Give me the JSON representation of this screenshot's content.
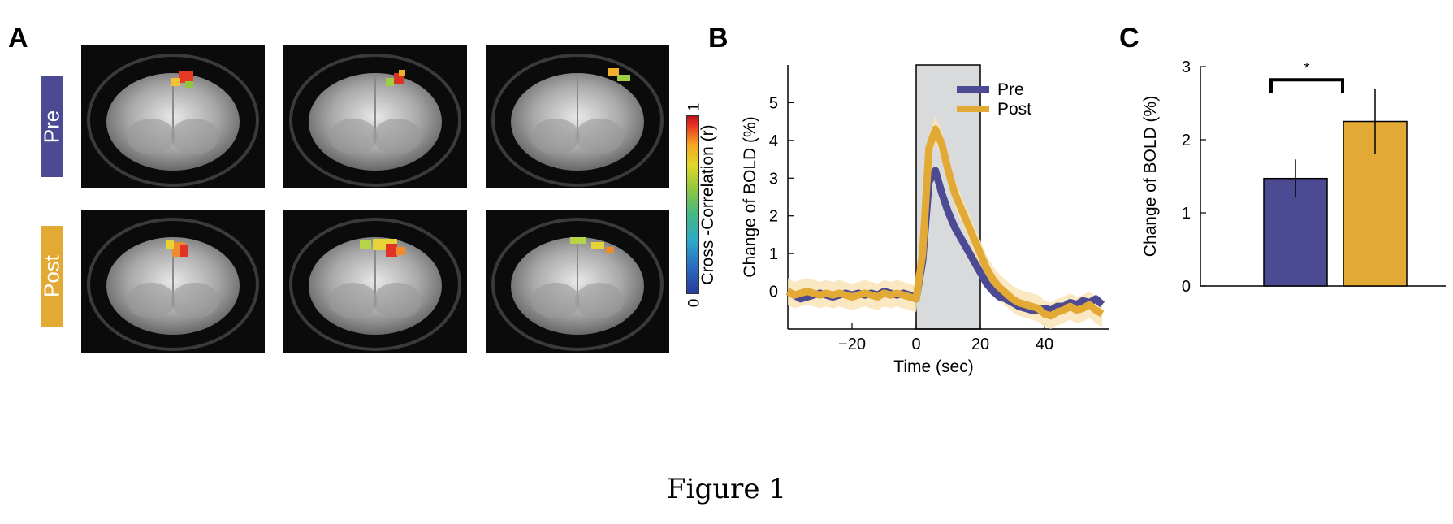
{
  "panels": {
    "a_label": "A",
    "b_label": "B",
    "c_label": "C"
  },
  "panel_a": {
    "row_labels": [
      "Pre",
      "Post"
    ],
    "colorbar": {
      "label": "Cross -Correlation (r)",
      "min_label": "0",
      "max_label": "1"
    }
  },
  "caption": "Figure 1",
  "colors": {
    "pre": "#4b4a93",
    "post": "#e3a935",
    "post_band": "#f9e4b8",
    "stim_box": "#d9dadc"
  },
  "chart_data": [
    {
      "type": "line",
      "panel": "B",
      "xlabel": "Time (sec)",
      "ylabel": "Change of BOLD (%)",
      "xlim": [
        -40,
        60
      ],
      "ylim": [
        -1,
        6
      ],
      "xticks": [
        -20,
        0,
        20,
        40
      ],
      "xtick_labels": [
        "−20",
        "0",
        "20",
        "40"
      ],
      "yticks": [
        0,
        1,
        2,
        3,
        4,
        5
      ],
      "stimulus_window": [
        0,
        20
      ],
      "legend": [
        "Pre",
        "Post"
      ],
      "legend_position": "top-right",
      "x": [
        -40,
        -38,
        -36,
        -34,
        -32,
        -30,
        -28,
        -26,
        -24,
        -22,
        -20,
        -18,
        -16,
        -14,
        -12,
        -10,
        -8,
        -6,
        -4,
        -2,
        0,
        2,
        4,
        6,
        8,
        10,
        12,
        14,
        16,
        18,
        20,
        22,
        24,
        26,
        28,
        30,
        32,
        34,
        36,
        38,
        40,
        42,
        44,
        46,
        48,
        50,
        52,
        54,
        56,
        58
      ],
      "series": [
        {
          "name": "Pre",
          "values": [
            0.0,
            -0.1,
            -0.2,
            -0.15,
            -0.1,
            -0.05,
            -0.1,
            -0.15,
            -0.1,
            -0.05,
            -0.1,
            -0.05,
            -0.1,
            -0.05,
            -0.1,
            0.0,
            -0.05,
            -0.1,
            -0.05,
            -0.1,
            -0.2,
            0.8,
            2.9,
            3.2,
            2.6,
            2.1,
            1.7,
            1.4,
            1.1,
            0.8,
            0.5,
            0.2,
            0.0,
            -0.15,
            -0.2,
            -0.3,
            -0.4,
            -0.45,
            -0.5,
            -0.5,
            -0.45,
            -0.5,
            -0.4,
            -0.4,
            -0.3,
            -0.35,
            -0.25,
            -0.3,
            -0.2,
            -0.35
          ]
        },
        {
          "name": "Post",
          "values": [
            0.0,
            -0.1,
            -0.05,
            0.0,
            -0.05,
            -0.1,
            -0.05,
            -0.1,
            -0.05,
            -0.1,
            -0.15,
            -0.1,
            -0.05,
            -0.1,
            -0.15,
            -0.05,
            -0.1,
            -0.05,
            -0.1,
            -0.15,
            -0.2,
            1.0,
            3.8,
            4.3,
            3.9,
            3.2,
            2.6,
            2.2,
            1.8,
            1.4,
            1.0,
            0.6,
            0.3,
            0.1,
            -0.05,
            -0.2,
            -0.3,
            -0.35,
            -0.4,
            -0.45,
            -0.6,
            -0.65,
            -0.55,
            -0.5,
            -0.4,
            -0.5,
            -0.45,
            -0.35,
            -0.5,
            -0.6
          ],
          "band": 0.35
        }
      ]
    },
    {
      "type": "bar",
      "panel": "C",
      "categories": [
        "Pre",
        "Post"
      ],
      "values": [
        1.47,
        2.25
      ],
      "errors": [
        0.26,
        0.44
      ],
      "ylabel": "Change of BOLD (%)",
      "ylim": [
        0,
        3
      ],
      "yticks": [
        0,
        1,
        2,
        3
      ],
      "significance": "*"
    }
  ]
}
